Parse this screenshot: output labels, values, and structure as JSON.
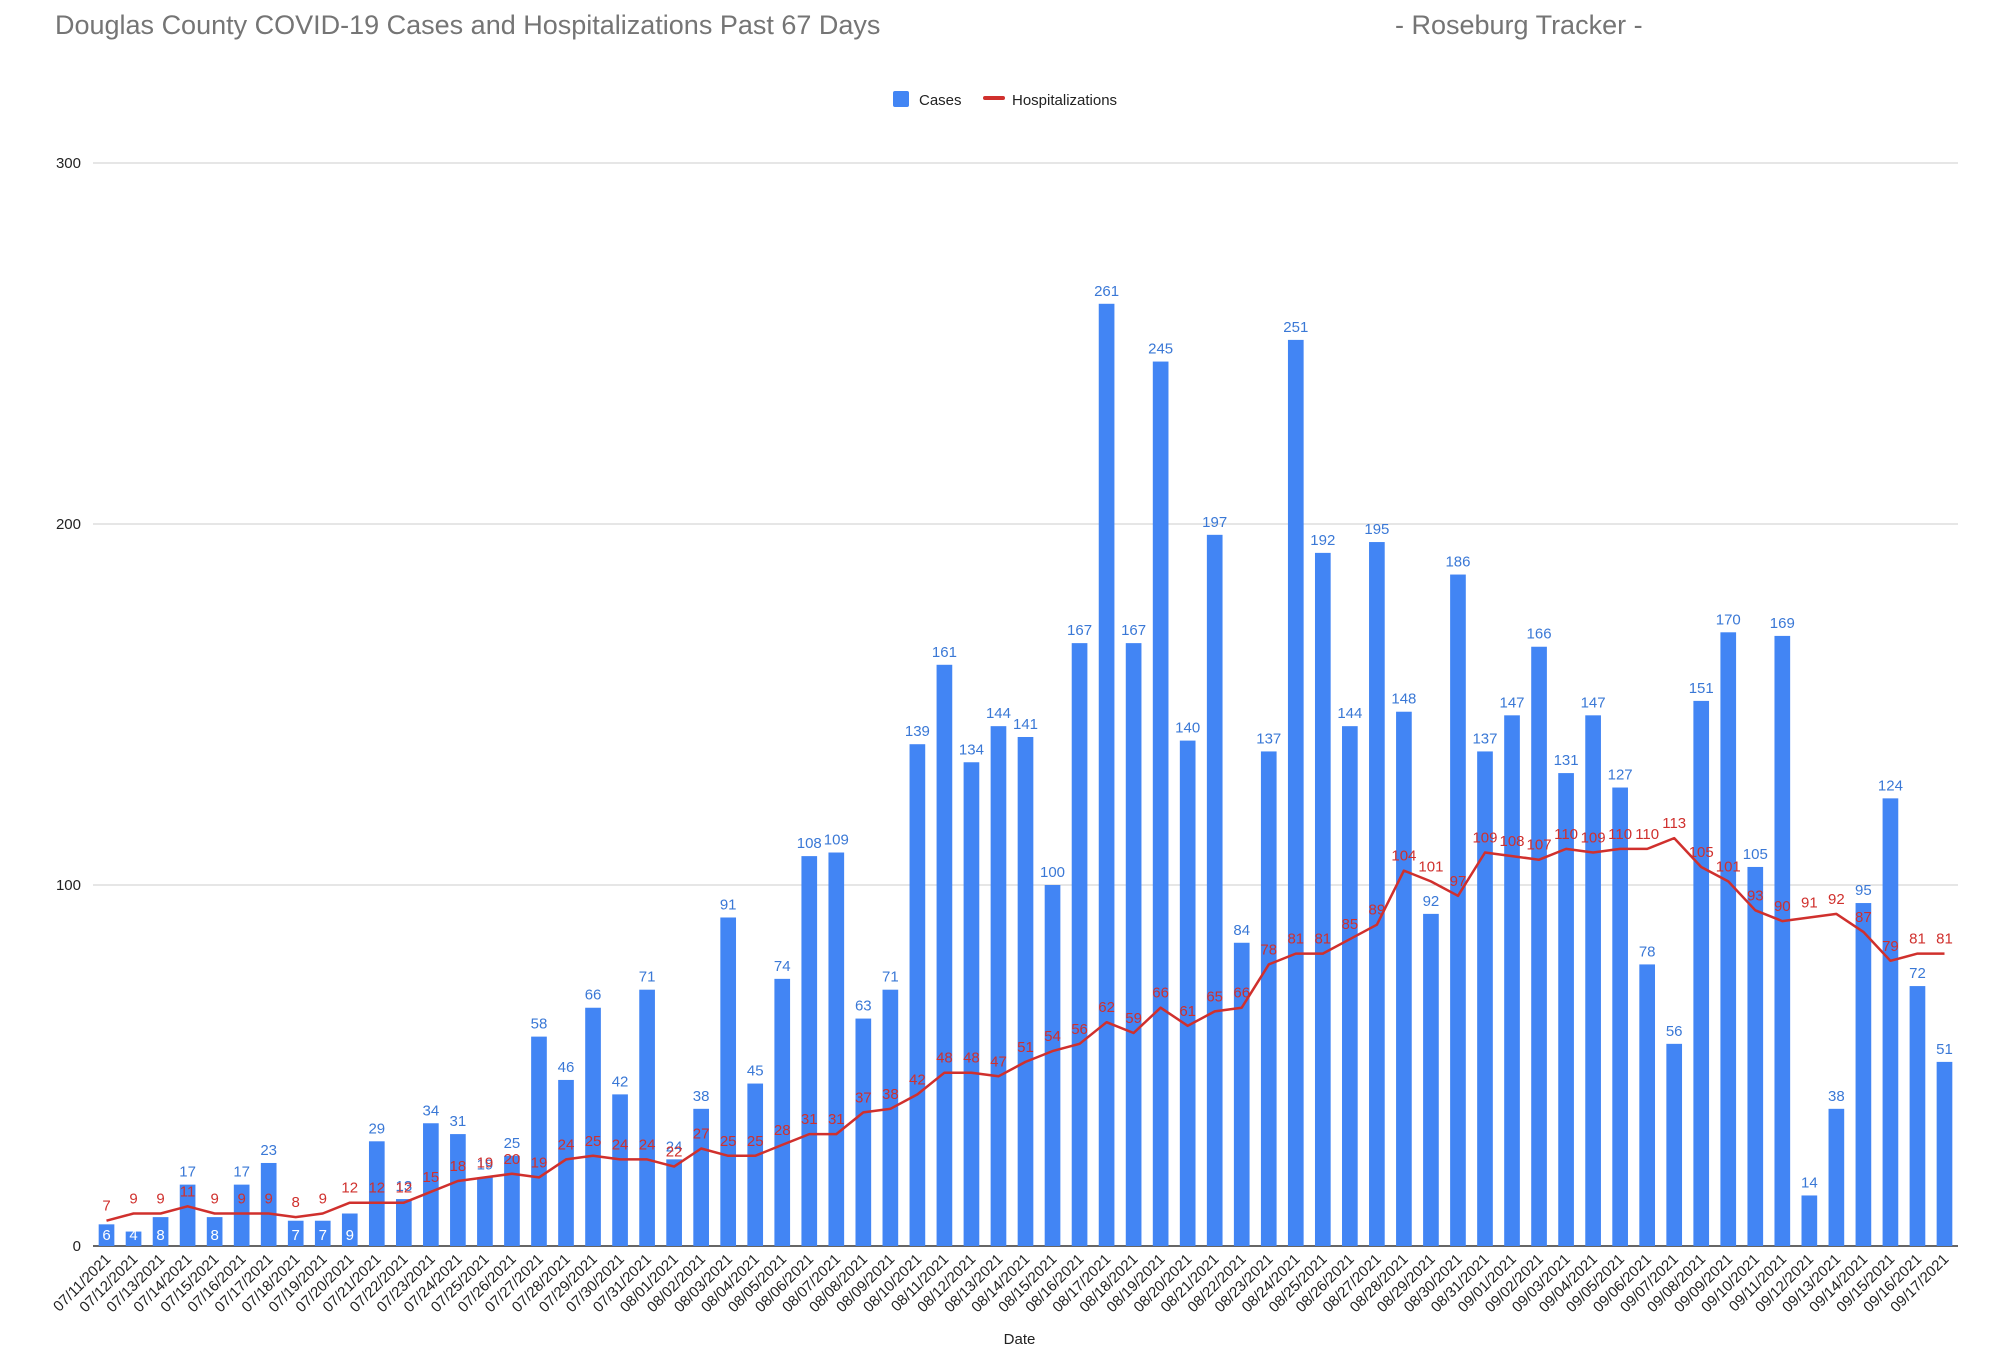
{
  "header": {
    "title": "Douglas County COVID-19 Cases and Hospitalizations Past 67 Days",
    "source": "- Roseburg Tracker -"
  },
  "chart_data": {
    "type": "bar",
    "title": "Douglas County COVID-19 Cases and Hospitalizations Past 67 Days",
    "subtitle": "- Roseburg Tracker -",
    "xlabel": "Date",
    "ylabel": "",
    "ylim": [
      0,
      300
    ],
    "yticks": [
      0,
      100,
      200,
      300
    ],
    "grid": true,
    "legend_position": "top",
    "categories": [
      "07/11/2021",
      "07/12/2021",
      "07/13/2021",
      "07/14/2021",
      "07/15/2021",
      "07/16/2021",
      "07/17/2021",
      "07/18/2021",
      "07/19/2021",
      "07/20/2021",
      "07/21/2021",
      "07/22/2021",
      "07/23/2021",
      "07/24/2021",
      "07/25/2021",
      "07/26/2021",
      "07/27/2021",
      "07/28/2021",
      "07/29/2021",
      "07/30/2021",
      "07/31/2021",
      "08/01/2021",
      "08/02/2021",
      "08/03/2021",
      "08/04/2021",
      "08/05/2021",
      "08/06/2021",
      "08/07/2021",
      "08/08/2021",
      "08/09/2021",
      "08/10/2021",
      "08/11/2021",
      "08/12/2021",
      "08/13/2021",
      "08/14/2021",
      "08/15/2021",
      "08/16/2021",
      "08/17/2021",
      "08/18/2021",
      "08/19/2021",
      "08/20/2021",
      "08/21/2021",
      "08/22/2021",
      "08/23/2021",
      "08/24/2021",
      "08/25/2021",
      "08/26/2021",
      "08/27/2021",
      "08/28/2021",
      "08/29/2021",
      "08/30/2021",
      "08/31/2021",
      "09/01/2021",
      "09/02/2021",
      "09/03/2021",
      "09/04/2021",
      "09/05/2021",
      "09/06/2021",
      "09/07/2021",
      "09/08/2021",
      "09/09/2021",
      "09/10/2021",
      "09/11/2021",
      "09/12/2021",
      "09/13/2021",
      "09/14/2021",
      "09/15/2021",
      "09/16/2021",
      "09/17/2021"
    ],
    "series": [
      {
        "name": "Cases",
        "type": "bar",
        "color": "#4285f4",
        "values": [
          6,
          4,
          8,
          17,
          8,
          17,
          23,
          7,
          7,
          9,
          29,
          13,
          34,
          31,
          19,
          25,
          58,
          46,
          66,
          42,
          71,
          24,
          38,
          91,
          45,
          74,
          108,
          109,
          63,
          71,
          139,
          161,
          134,
          144,
          141,
          100,
          167,
          261,
          167,
          245,
          140,
          197,
          84,
          137,
          251,
          192,
          144,
          195,
          148,
          92,
          186,
          137,
          147,
          166,
          131,
          147,
          127,
          78,
          56,
          151,
          170,
          105,
          169,
          14,
          38,
          95,
          124,
          72,
          51
        ]
      },
      {
        "name": "Hospitalizations",
        "type": "line",
        "color": "#d0302d",
        "values": [
          7,
          9,
          9,
          11,
          9,
          9,
          9,
          8,
          9,
          12,
          12,
          12,
          15,
          18,
          19,
          20,
          19,
          24,
          25,
          24,
          24,
          22,
          27,
          25,
          25,
          28,
          31,
          31,
          37,
          38,
          42,
          48,
          48,
          47,
          51,
          54,
          56,
          62,
          59,
          66,
          61,
          65,
          66,
          78,
          81,
          81,
          85,
          89,
          104,
          101,
          97,
          109,
          108,
          107,
          110,
          109,
          110,
          110,
          113,
          105,
          101,
          93,
          90,
          91,
          92,
          87,
          79,
          81,
          81
        ]
      }
    ]
  }
}
